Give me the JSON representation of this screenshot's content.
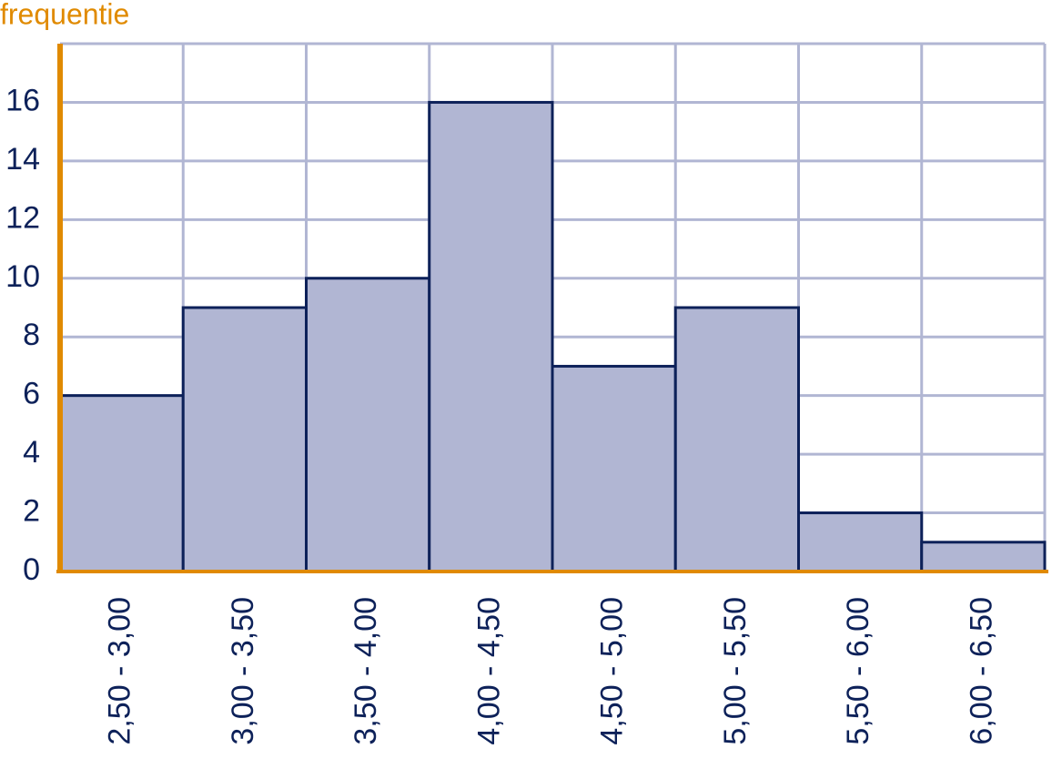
{
  "chart_data": {
    "type": "bar",
    "y_label": "frequentie",
    "categories": [
      "2,50 - 3,00",
      "3,00 - 3,50",
      "3,50 - 4,00",
      "4,00 - 4,50",
      "4,50 - 5,00",
      "5,00 - 5,50",
      "5,50 - 6,00",
      "6,00 - 6,50"
    ],
    "values": [
      6,
      9,
      10,
      16,
      7,
      9,
      2,
      1
    ],
    "color": "#b1b6d3",
    "ylim": [
      0,
      18
    ],
    "yticks": [
      0,
      2,
      4,
      6,
      8,
      10,
      12,
      14,
      16
    ],
    "grid": true
  }
}
